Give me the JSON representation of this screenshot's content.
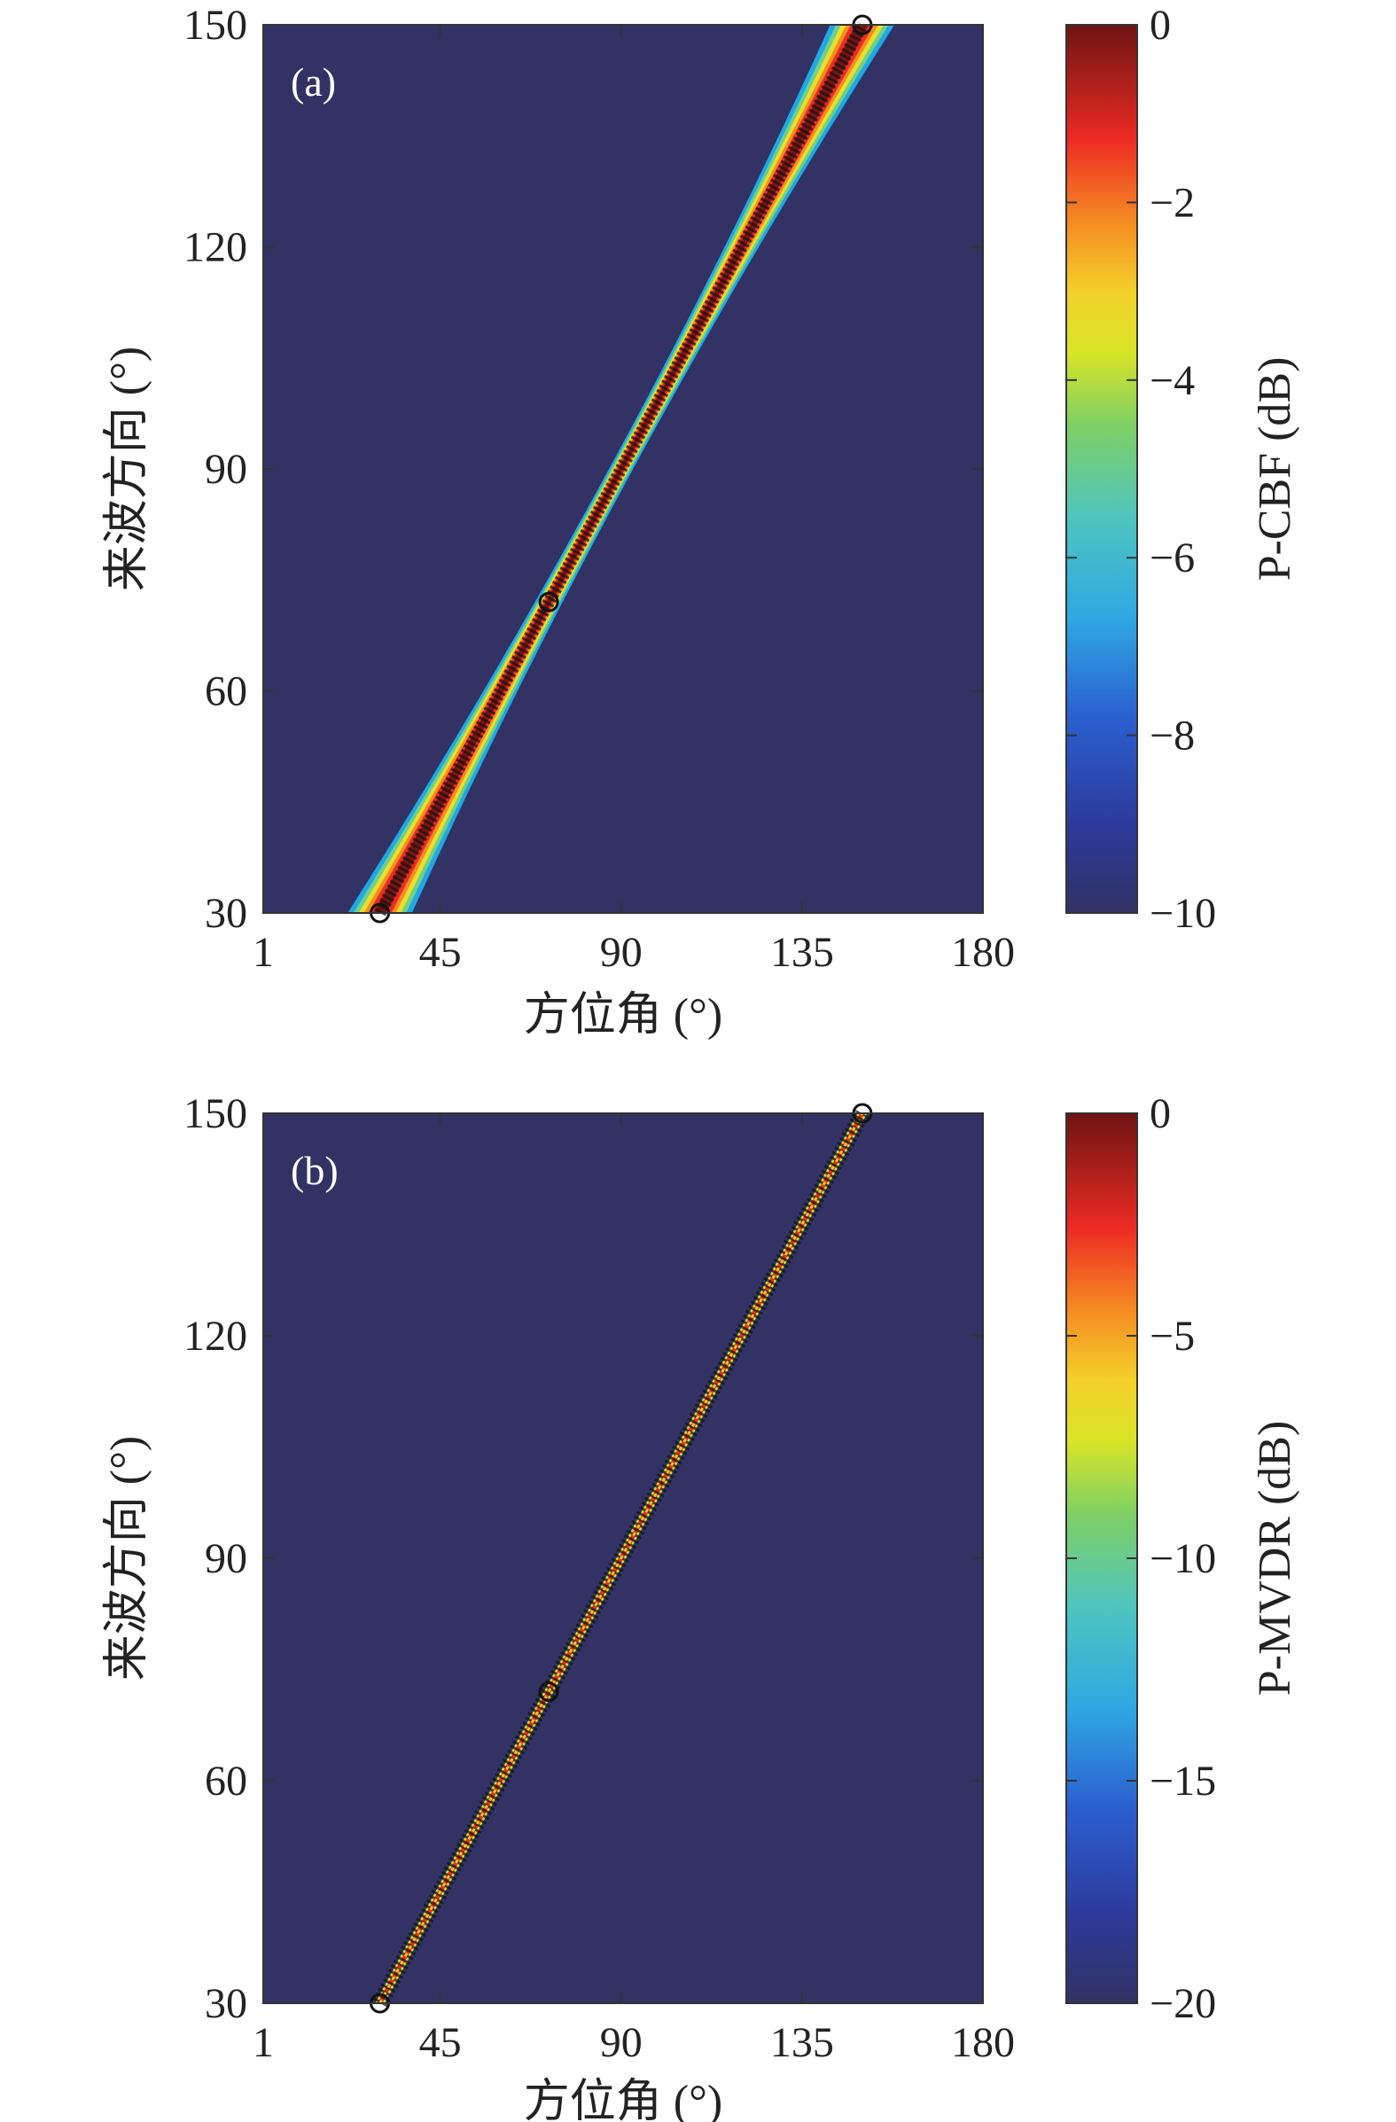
{
  "chart_data": [
    {
      "type": "heatmap",
      "panel_label": "(a)",
      "xlabel": "方位角 (°)",
      "ylabel": "来波方向 (°)",
      "xlim": [
        1,
        180
      ],
      "ylim": [
        30,
        150
      ],
      "xticks": [
        1,
        45,
        90,
        135,
        180
      ],
      "yticks": [
        30,
        60,
        90,
        120,
        150
      ],
      "colorbar": {
        "label": "P-CBF (dB)",
        "range": [
          -10,
          0
        ],
        "ticks": [
          0,
          -2,
          -4,
          -6,
          -8,
          -10
        ],
        "tick_labels": [
          "0",
          "−2",
          "−4",
          "−6",
          "−8",
          "−10"
        ]
      },
      "ridge": {
        "points": [
          [
            30,
            30
          ],
          [
            72,
            72
          ],
          [
            150,
            150
          ]
        ],
        "marker_y": [
          30,
          72,
          150
        ],
        "halfwidth_deg_at_y30": 8,
        "halfwidth_deg_at_y150": 8,
        "halfwidth_deg_min": 3
      }
    },
    {
      "type": "heatmap",
      "panel_label": "(b)",
      "xlabel": "方位角 (°)",
      "ylabel": "来波方向 (°)",
      "xlim": [
        1,
        180
      ],
      "ylim": [
        30,
        150
      ],
      "xticks": [
        1,
        45,
        90,
        135,
        180
      ],
      "yticks": [
        30,
        60,
        90,
        120,
        150
      ],
      "colorbar": {
        "label": "P-MVDR (dB)",
        "range": [
          -20,
          0
        ],
        "ticks": [
          0,
          -5,
          -10,
          -15,
          -20
        ],
        "tick_labels": [
          "0",
          "−5",
          "−10",
          "−15",
          "−20"
        ]
      },
      "ridge": {
        "points": [
          [
            30,
            30
          ],
          [
            72,
            72
          ],
          [
            150,
            150
          ]
        ],
        "marker_y": [
          30,
          72,
          150
        ],
        "halfwidth_deg_at_y30": 1.2,
        "halfwidth_deg_at_y150": 1.2,
        "halfwidth_deg_min": 1.2
      }
    }
  ],
  "colors": {
    "background": "#323264",
    "colormap": [
      "#3a2f8f",
      "#2b52c8",
      "#2fa4e0",
      "#49c6c8",
      "#6fcf6a",
      "#c4e02a",
      "#f2d52a",
      "#f59a22",
      "#ef3a22",
      "#b3211f",
      "#6e1412"
    ],
    "marker_edge": "#1a1a1a"
  }
}
